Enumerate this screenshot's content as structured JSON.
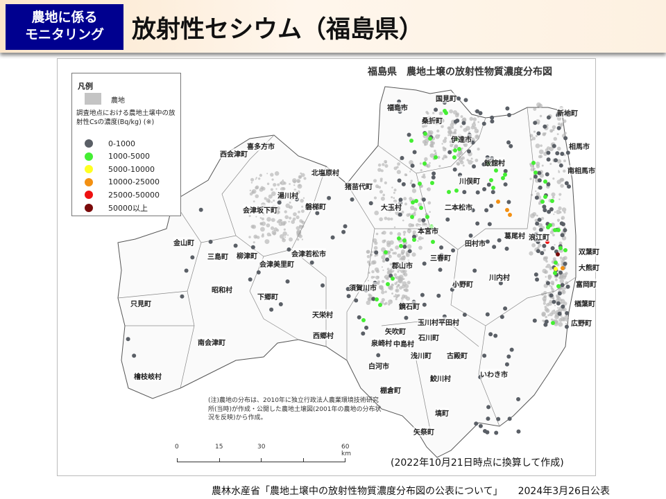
{
  "header": {
    "badge_line1": "農地に係る",
    "badge_line2": "モニタリング",
    "title": "放射性セシウム（福島県）",
    "badge_color": "#00008f"
  },
  "map": {
    "title": "福島県　農地土壌の放射性物質濃度分布図",
    "legend": {
      "heading": "凡例",
      "farmland": "農地",
      "description": "調査地点における農地土壌中の放射性Csの濃度(Bq/kg) (※)",
      "classes": [
        {
          "label": "0-1000",
          "color": "#5a5f66"
        },
        {
          "label": "1000-5000",
          "color": "#44ee33"
        },
        {
          "label": "5000-10000",
          "color": "#ffff22"
        },
        {
          "label": "10000-25000",
          "color": "#f39012"
        },
        {
          "label": "25000-50000",
          "color": "#ee1111"
        },
        {
          "label": "50000以上",
          "color": "#7a0a0a"
        }
      ]
    },
    "place_names": [
      "福島市",
      "国見町",
      "桑折町",
      "伊達市",
      "新地町",
      "相馬市",
      "南相馬市",
      "飯舘村",
      "川俣町",
      "喜多方市",
      "西会津町",
      "北塩原村",
      "猪苗代町",
      "湯川村",
      "会津坂下町",
      "磐梯町",
      "大玉村",
      "二本松市",
      "本宮市",
      "葛尾村",
      "浪江町",
      "金山町",
      "三島町",
      "柳津町",
      "会津美里町",
      "会津若松市",
      "郡山市",
      "三春町",
      "田村市",
      "双葉町",
      "大熊町",
      "昭和村",
      "川内村",
      "富岡町",
      "小野町",
      "只見町",
      "下郷町",
      "須賀川市",
      "鏡石町",
      "楢葉町",
      "天栄村",
      "玉川村",
      "平田村",
      "広野町",
      "西郷村",
      "矢吹町",
      "石川町",
      "泉崎村",
      "中島村",
      "南会津町",
      "浅川町",
      "古殿町",
      "白河市",
      "いわき市",
      "棚倉町",
      "鮫川村",
      "檜枝岐村",
      "塙町",
      "矢祭町"
    ],
    "note": "(注)農地の分布は、2010年に独立行政法人農業環境技術研究所(当時)が作成・公開した農地土壌図(2001年の農地の分布状況を反映)から作成。",
    "scale_ticks": [
      "0",
      "15",
      "30",
      "60 km"
    ],
    "conversion_note": "(2022年10月21日時点に換算して作成)"
  },
  "source": {
    "text": "農林水産省「農地土壌中の放射性物質濃度分布図の公表について」",
    "date": "2024年3月26日公表"
  }
}
